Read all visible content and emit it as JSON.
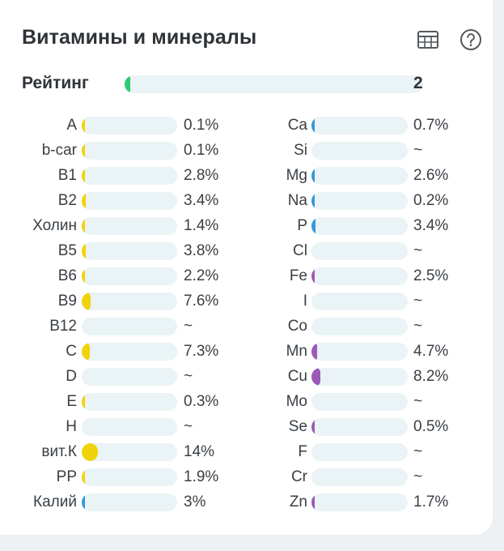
{
  "header": {
    "title": "Витамины и минералы",
    "table_icon": "table-icon",
    "help_icon": "question-circle-icon"
  },
  "rating": {
    "label": "Рейтинг",
    "value": "2",
    "fraction": 0.02,
    "color": "#2ecc71"
  },
  "colors": {
    "track": "#eaf3f5",
    "vitamin": "#f1d30c",
    "macro": "#3498db",
    "trace": "#9b59b6"
  },
  "vitamins": [
    {
      "name": "A",
      "value": "0.1%",
      "fraction": 0.001
    },
    {
      "name": "b-car",
      "value": "0.1%",
      "fraction": 0.001
    },
    {
      "name": "B1",
      "value": "2.8%",
      "fraction": 0.028
    },
    {
      "name": "B2",
      "value": "3.4%",
      "fraction": 0.034
    },
    {
      "name": "Холин",
      "value": "1.4%",
      "fraction": 0.014
    },
    {
      "name": "B5",
      "value": "3.8%",
      "fraction": 0.038
    },
    {
      "name": "B6",
      "value": "2.2%",
      "fraction": 0.022
    },
    {
      "name": "B9",
      "value": "7.6%",
      "fraction": 0.076
    },
    {
      "name": "B12",
      "value": "~",
      "fraction": 0
    },
    {
      "name": "C",
      "value": "7.3%",
      "fraction": 0.073
    },
    {
      "name": "D",
      "value": "~",
      "fraction": 0
    },
    {
      "name": "E",
      "value": "0.3%",
      "fraction": 0.003
    },
    {
      "name": "H",
      "value": "~",
      "fraction": 0
    },
    {
      "name": "вит.К",
      "value": "14%",
      "fraction": 0.14
    },
    {
      "name": "PP",
      "value": "1.9%",
      "fraction": 0.019
    },
    {
      "name": "Калий",
      "value": "3%",
      "fraction": 0.03,
      "type": "macro"
    }
  ],
  "minerals": [
    {
      "name": "Ca",
      "value": "0.7%",
      "fraction": 0.007,
      "type": "macro"
    },
    {
      "name": "Si",
      "value": "~",
      "fraction": 0,
      "type": "macro"
    },
    {
      "name": "Mg",
      "value": "2.6%",
      "fraction": 0.026,
      "type": "macro"
    },
    {
      "name": "Na",
      "value": "0.2%",
      "fraction": 0.002,
      "type": "macro"
    },
    {
      "name": "P",
      "value": "3.4%",
      "fraction": 0.034,
      "type": "macro"
    },
    {
      "name": "Cl",
      "value": "~",
      "fraction": 0,
      "type": "macro"
    },
    {
      "name": "Fe",
      "value": "2.5%",
      "fraction": 0.025,
      "type": "trace"
    },
    {
      "name": "I",
      "value": "~",
      "fraction": 0,
      "type": "trace"
    },
    {
      "name": "Co",
      "value": "~",
      "fraction": 0,
      "type": "trace"
    },
    {
      "name": "Mn",
      "value": "4.7%",
      "fraction": 0.047,
      "type": "trace"
    },
    {
      "name": "Cu",
      "value": "8.2%",
      "fraction": 0.082,
      "type": "trace"
    },
    {
      "name": "Mo",
      "value": "~",
      "fraction": 0,
      "type": "trace"
    },
    {
      "name": "Se",
      "value": "0.5%",
      "fraction": 0.005,
      "type": "trace"
    },
    {
      "name": "F",
      "value": "~",
      "fraction": 0,
      "type": "trace"
    },
    {
      "name": "Cr",
      "value": "~",
      "fraction": 0,
      "type": "trace"
    },
    {
      "name": "Zn",
      "value": "1.7%",
      "fraction": 0.017,
      "type": "trace"
    }
  ]
}
